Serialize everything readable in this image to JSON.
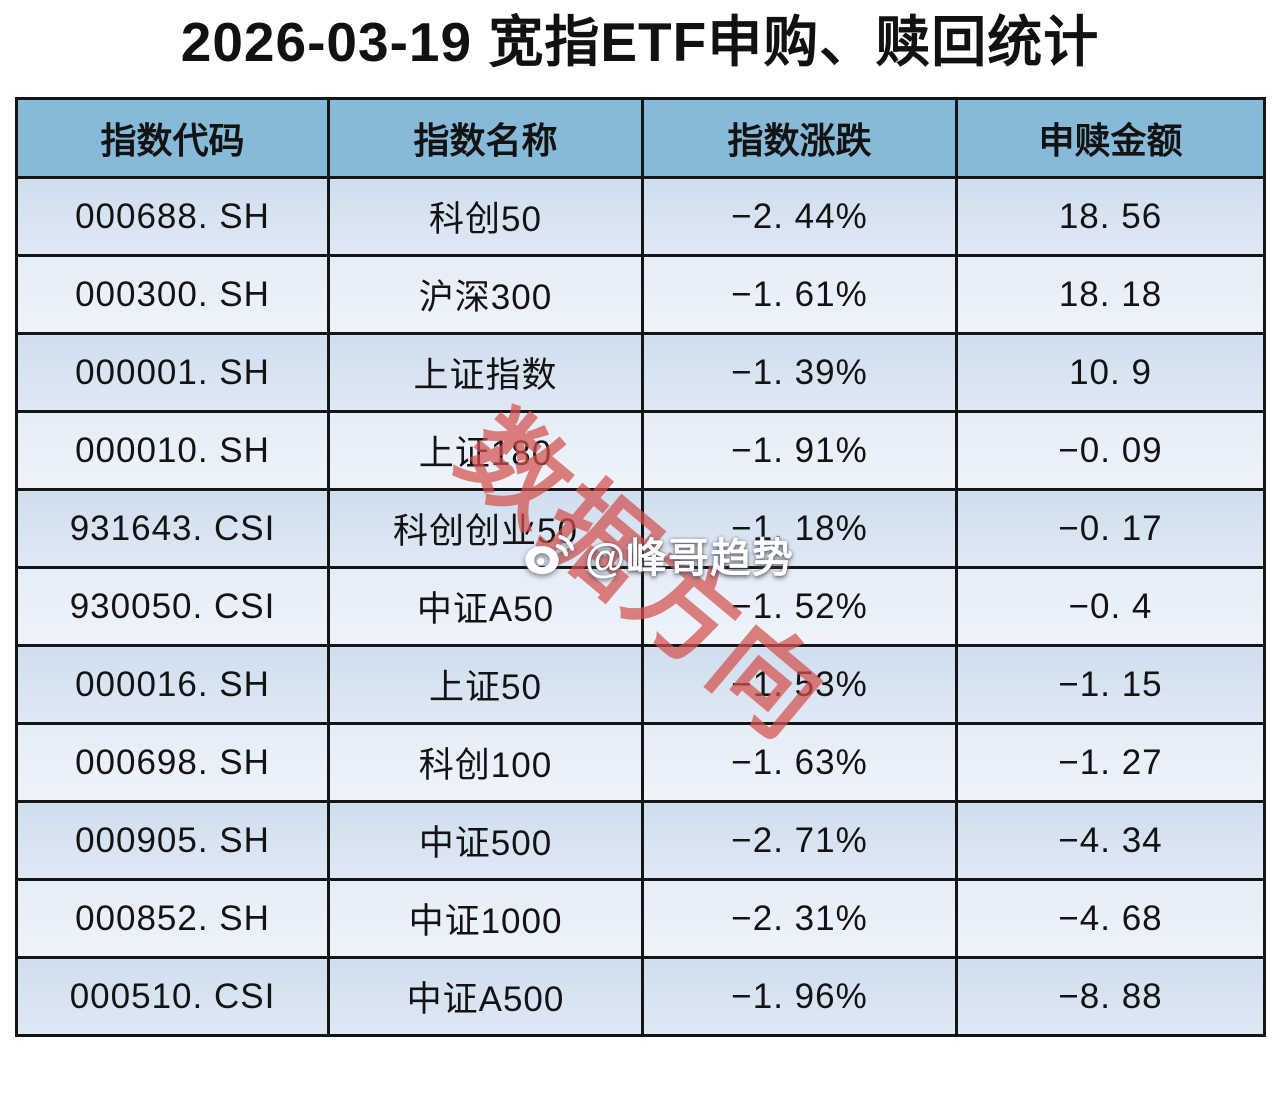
{
  "title": "2026-03-19 宽指ETF申购、赎回统计",
  "chart_data": {
    "type": "table",
    "title": "2026-03-19 宽指ETF申购、赎回统计",
    "columns": [
      "指数代码",
      "指数名称",
      "指数涨跌",
      "申赎金额"
    ],
    "rows": [
      {
        "code": "000688. SH",
        "name": "科创50",
        "change": "−2. 44%",
        "amount": "18. 56"
      },
      {
        "code": "000300. SH",
        "name": "沪深300",
        "change": "−1. 61%",
        "amount": "18. 18"
      },
      {
        "code": "000001. SH",
        "name": "上证指数",
        "change": "−1. 39%",
        "amount": "10. 9"
      },
      {
        "code": "000010. SH",
        "name": "上证180",
        "change": "−1. 91%",
        "amount": "−0. 09"
      },
      {
        "code": "931643. CSI",
        "name": "科创创业50",
        "change": "−1. 18%",
        "amount": "−0. 17"
      },
      {
        "code": "930050. CSI",
        "name": "中证A50",
        "change": "−1. 52%",
        "amount": "−0. 4"
      },
      {
        "code": "000016. SH",
        "name": "上证50",
        "change": "−1. 53%",
        "amount": "−1. 15"
      },
      {
        "code": "000698. SH",
        "name": "科创100",
        "change": "−1. 63%",
        "amount": "−1. 27"
      },
      {
        "code": "000905. SH",
        "name": "中证500",
        "change": "−2. 71%",
        "amount": "−4. 34"
      },
      {
        "code": "000852. SH",
        "name": "中证1000",
        "change": "−2. 31%",
        "amount": "−4. 68"
      },
      {
        "code": "000510. CSI",
        "name": "中证A500",
        "change": "−1. 96%",
        "amount": "−8. 88"
      }
    ],
    "changes_pct": [
      -2.44,
      -1.61,
      -1.39,
      -1.91,
      -1.18,
      -1.52,
      -1.53,
      -1.63,
      -2.71,
      -2.31,
      -1.96
    ],
    "amounts": [
      18.56,
      18.18,
      10.9,
      -0.09,
      -0.17,
      -0.4,
      -1.15,
      -1.27,
      -4.34,
      -4.68,
      -8.88
    ],
    "grid": true,
    "legend": false
  },
  "watermark": {
    "diagonal_text": "数据方向",
    "weibo_handle": "@峰哥趋势",
    "weibo_icon": "weibo-icon"
  },
  "colors": {
    "header_bg": "#87bad8",
    "border": "#151515",
    "row_odd_top": "#cfdeee",
    "row_odd_bottom": "#dfe9f4",
    "row_even_top": "#e5edf8",
    "row_even_bottom": "#eef3fb",
    "watermark_red": "#d4514e",
    "watermark_handle": "#ffffff",
    "title_text": "#111111"
  }
}
